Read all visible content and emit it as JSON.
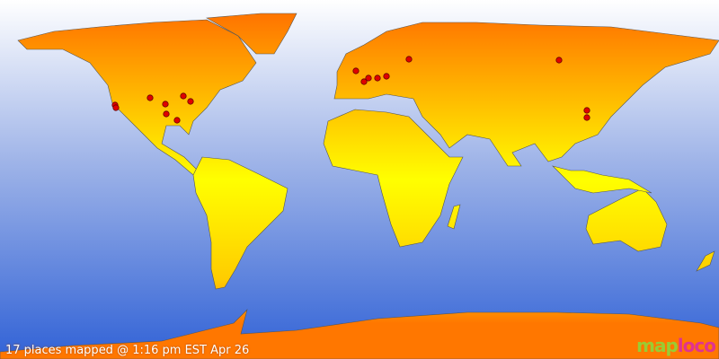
{
  "status_text": "17 places mapped @ 1:16 pm EST Apr 26",
  "logo": {
    "part1": "map",
    "part2": "loco"
  },
  "colors": {
    "ocean_top": "#ffffff",
    "ocean_bottom": "#3366dd",
    "land_north": "#ff7700",
    "land_equator": "#ffff00",
    "marker": "#e00000"
  },
  "places_count": 17
}
